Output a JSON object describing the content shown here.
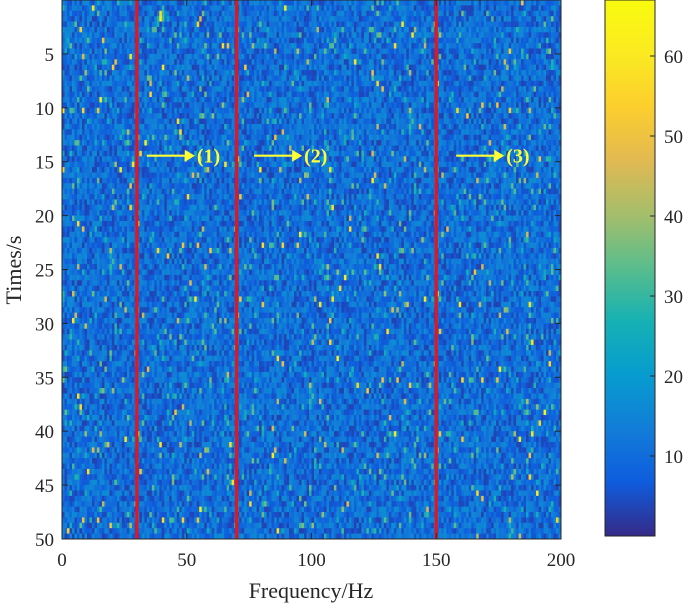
{
  "chart_data": {
    "type": "heatmap",
    "title": "",
    "xlabel": "Frequency/Hz",
    "ylabel": "Times/s",
    "xlim": [
      0,
      200
    ],
    "ylim": [
      0,
      50
    ],
    "y_reversed": true,
    "x_ticks": [
      "0",
      "50",
      "100",
      "150",
      "200"
    ],
    "y_ticks": [
      "5",
      "10",
      "15",
      "20",
      "25",
      "30",
      "35",
      "40",
      "45",
      "50"
    ],
    "colorbar": {
      "range": [
        0,
        67
      ],
      "ticks": [
        "10",
        "20",
        "30",
        "40",
        "50",
        "60"
      ],
      "colormap": "parula"
    },
    "cell_value_range": [
      0,
      67
    ],
    "typical_cell_value": 12,
    "highlighted_lines": [
      {
        "frequency_hz": 30,
        "color": "#e8141b"
      },
      {
        "frequency_hz": 70,
        "color": "#e8141b"
      },
      {
        "frequency_hz": 150,
        "color": "#e8141b"
      }
    ],
    "annotations": [
      {
        "text": "(1)",
        "at_frequency_hz": 30,
        "at_time_s": 15,
        "color": "#ffff33"
      },
      {
        "text": "(2)",
        "at_frequency_hz": 73,
        "at_time_s": 15,
        "color": "#ffff33"
      },
      {
        "text": "(3)",
        "at_frequency_hz": 154,
        "at_time_s": 15,
        "color": "#ffff33"
      }
    ]
  }
}
